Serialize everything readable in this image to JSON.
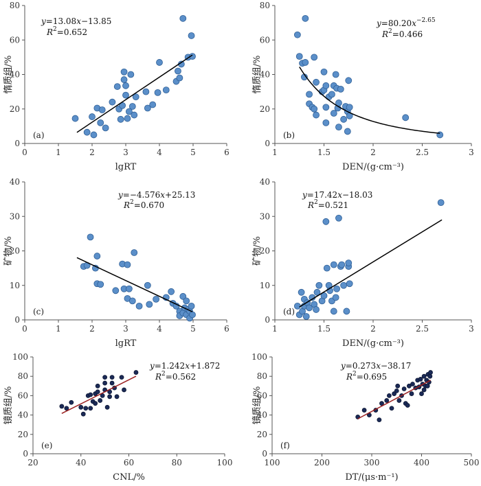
{
  "chart_data": [
    {
      "id": "a",
      "type": "scatter",
      "panel_label": "(a)",
      "xlabel": "lgRT",
      "ylabel": "惰质组/%",
      "xlim": [
        0,
        6
      ],
      "ylim": [
        0,
        80
      ],
      "xticks": [
        0,
        1,
        2,
        3,
        4,
        5,
        6
      ],
      "yticks": [
        0,
        20,
        40,
        60,
        80
      ],
      "equation": "y=13.08x−13.85",
      "r2": "R²=0.652",
      "eq_parts": {
        "y": "y",
        "rhs1": "=13.08",
        "x": "x",
        "rhs2": "−13.85",
        "r": "R",
        "sup": "2",
        "r2val": "=0.652"
      },
      "fit": {
        "kind": "linear",
        "slope": 13.08,
        "intercept": -13.85,
        "x0": 1.55,
        "x1": 4.98
      },
      "marker": {
        "fill": "#5b8fc9",
        "stroke": "#2f5f96",
        "r": 4.5
      },
      "points": [
        [
          1.5,
          14.5
        ],
        [
          1.85,
          6.5
        ],
        [
          2.0,
          15.5
        ],
        [
          2.05,
          5.0
        ],
        [
          2.15,
          20.5
        ],
        [
          2.25,
          12.0
        ],
        [
          2.3,
          19.5
        ],
        [
          2.4,
          9.0
        ],
        [
          2.6,
          24.0
        ],
        [
          2.75,
          33.0
        ],
        [
          2.8,
          20.0
        ],
        [
          2.85,
          14.0
        ],
        [
          2.9,
          22.0
        ],
        [
          2.95,
          37.0
        ],
        [
          2.95,
          41.5
        ],
        [
          3.0,
          28.0
        ],
        [
          3.0,
          33.5
        ],
        [
          3.05,
          14.5
        ],
        [
          3.1,
          18.5
        ],
        [
          3.15,
          40.0
        ],
        [
          3.2,
          21.5
        ],
        [
          3.25,
          16.5
        ],
        [
          3.3,
          27.0
        ],
        [
          3.6,
          30.0
        ],
        [
          3.65,
          20.5
        ],
        [
          3.8,
          22.5
        ],
        [
          3.95,
          29.5
        ],
        [
          4.0,
          47.0
        ],
        [
          4.2,
          31.0
        ],
        [
          4.5,
          36.0
        ],
        [
          4.55,
          42.0
        ],
        [
          4.6,
          38.0
        ],
        [
          4.65,
          46.0
        ],
        [
          4.7,
          72.5
        ],
        [
          4.85,
          50.0
        ],
        [
          4.95,
          62.5
        ],
        [
          4.98,
          50.5
        ]
      ]
    },
    {
      "id": "b",
      "type": "scatter",
      "panel_label": "(b)",
      "xlabel": "DEN/(g·cm⁻³)",
      "ylabel": "惰质组/%",
      "xlim": [
        1,
        3
      ],
      "ylim": [
        0,
        80
      ],
      "xticks": [
        1,
        1.5,
        2,
        2.5,
        3
      ],
      "yticks": [
        0,
        20,
        40,
        60,
        80
      ],
      "equation": "y=80.20x^-2.65",
      "r2": "R²=0.466",
      "eq_parts": {
        "y": "y",
        "rhs1": "=80.20",
        "x": "x",
        "sup": "−2.65",
        "r": "R",
        "sup2": "2",
        "r2val": "=0.466"
      },
      "fit": {
        "kind": "power",
        "a": 80.2,
        "b": -2.65,
        "x0": 1.25,
        "x1": 2.68
      },
      "marker": {
        "fill": "#5b8fc9",
        "stroke": "#2f5f96",
        "r": 4.5
      },
      "points": [
        [
          1.23,
          63.0
        ],
        [
          1.25,
          50.5
        ],
        [
          1.28,
          46.5
        ],
        [
          1.31,
          72.5
        ],
        [
          1.31,
          47.0
        ],
        [
          1.3,
          38.5
        ],
        [
          1.35,
          23.0
        ],
        [
          1.35,
          28.5
        ],
        [
          1.38,
          21.0
        ],
        [
          1.4,
          50.0
        ],
        [
          1.4,
          20.0
        ],
        [
          1.42,
          16.5
        ],
        [
          1.42,
          35.5
        ],
        [
          1.48,
          30.0
        ],
        [
          1.5,
          31.0
        ],
        [
          1.5,
          41.5
        ],
        [
          1.52,
          33.5
        ],
        [
          1.52,
          21.0
        ],
        [
          1.52,
          12.0
        ],
        [
          1.55,
          27.0
        ],
        [
          1.58,
          28.5
        ],
        [
          1.6,
          33.5
        ],
        [
          1.6,
          17.5
        ],
        [
          1.62,
          40.0
        ],
        [
          1.63,
          32.0
        ],
        [
          1.64,
          20.5
        ],
        [
          1.65,
          23.5
        ],
        [
          1.65,
          9.5
        ],
        [
          1.67,
          31.5
        ],
        [
          1.7,
          14.0
        ],
        [
          1.72,
          21.5
        ],
        [
          1.74,
          18.5
        ],
        [
          1.75,
          36.5
        ],
        [
          1.76,
          16.0
        ],
        [
          1.76,
          21.0
        ],
        [
          1.74,
          7.0
        ],
        [
          2.33,
          15.0
        ],
        [
          2.68,
          5.0
        ]
      ]
    },
    {
      "id": "c",
      "type": "scatter",
      "panel_label": "(c)",
      "xlabel": "lgRT",
      "ylabel": "矿物/%",
      "xlim": [
        0,
        6
      ],
      "ylim": [
        0,
        40
      ],
      "xticks": [
        0,
        1,
        2,
        3,
        4,
        5,
        6
      ],
      "yticks": [
        0,
        10,
        20,
        30,
        40
      ],
      "equation": "y=−4.576x+25.13",
      "r2": "R²=0.670",
      "eq_parts": {
        "y": "y",
        "rhs1": "=−4.576",
        "x": "x",
        "rhs2": "+25.13",
        "r": "R",
        "sup": "2",
        "r2val": "=0.670"
      },
      "fit": {
        "kind": "linear",
        "slope": -4.576,
        "intercept": 25.13,
        "x0": 1.55,
        "x1": 4.98
      },
      "marker": {
        "fill": "#5b8fc9",
        "stroke": "#2f5f96",
        "r": 4.5
      },
      "points": [
        [
          1.75,
          15.5
        ],
        [
          1.85,
          15.8
        ],
        [
          1.95,
          24.0
        ],
        [
          2.1,
          15.0
        ],
        [
          2.15,
          10.5
        ],
        [
          2.15,
          18.5
        ],
        [
          2.25,
          10.3
        ],
        [
          2.7,
          8.5
        ],
        [
          2.9,
          16.2
        ],
        [
          2.95,
          9.0
        ],
        [
          3.05,
          16.0
        ],
        [
          3.05,
          6.2
        ],
        [
          3.1,
          9.0
        ],
        [
          3.2,
          5.5
        ],
        [
          3.25,
          19.5
        ],
        [
          3.4,
          4.0
        ],
        [
          3.65,
          10.0
        ],
        [
          3.7,
          4.5
        ],
        [
          3.9,
          6.0
        ],
        [
          4.2,
          6.5
        ],
        [
          4.35,
          8.2
        ],
        [
          4.4,
          4.8
        ],
        [
          4.5,
          4.0
        ],
        [
          4.6,
          2.5
        ],
        [
          4.6,
          1.2
        ],
        [
          4.7,
          2.0
        ],
        [
          4.7,
          6.8
        ],
        [
          4.75,
          3.5
        ],
        [
          4.8,
          5.5
        ],
        [
          4.8,
          1.5
        ],
        [
          4.85,
          3.0
        ],
        [
          4.9,
          2.5
        ],
        [
          4.9,
          0.5
        ],
        [
          4.95,
          4.0
        ],
        [
          4.98,
          1.5
        ]
      ]
    },
    {
      "id": "d",
      "type": "scatter",
      "panel_label": "(d)",
      "xlabel": "DEN/(g·cm⁻³)",
      "ylabel": "矿物/%",
      "xlim": [
        1,
        3
      ],
      "ylim": [
        0,
        40
      ],
      "xticks": [
        1,
        1.5,
        2,
        2.5,
        3
      ],
      "yticks": [
        0,
        10,
        20,
        30,
        40
      ],
      "equation": "y=17.42x−18.03",
      "r2": "R²=0.521",
      "eq_parts": {
        "y": "y",
        "rhs1": "=17.42",
        "x": "x",
        "rhs2": "−18.03",
        "r": "R",
        "sup": "2",
        "r2val": "=0.521"
      },
      "fit": {
        "kind": "linear",
        "slope": 17.42,
        "intercept": -18.03,
        "x0": 1.25,
        "x1": 2.7
      },
      "marker": {
        "fill": "#5b8fc9",
        "stroke": "#2f5f96",
        "r": 4.5
      },
      "points": [
        [
          1.23,
          4.0
        ],
        [
          1.25,
          1.5
        ],
        [
          1.27,
          8.0
        ],
        [
          1.28,
          2.5
        ],
        [
          1.3,
          4.0
        ],
        [
          1.3,
          6.0
        ],
        [
          1.32,
          1.0
        ],
        [
          1.33,
          5.0
        ],
        [
          1.35,
          3.5
        ],
        [
          1.38,
          6.5
        ],
        [
          1.4,
          4.5
        ],
        [
          1.42,
          3.0
        ],
        [
          1.43,
          8.0
        ],
        [
          1.45,
          10.0
        ],
        [
          1.48,
          5.5
        ],
        [
          1.5,
          7.0
        ],
        [
          1.52,
          28.5
        ],
        [
          1.53,
          15.0
        ],
        [
          1.55,
          10.0
        ],
        [
          1.56,
          8.5
        ],
        [
          1.58,
          5.5
        ],
        [
          1.6,
          16.0
        ],
        [
          1.6,
          2.5
        ],
        [
          1.62,
          6.5
        ],
        [
          1.63,
          9.0
        ],
        [
          1.65,
          29.5
        ],
        [
          1.67,
          15.5
        ],
        [
          1.68,
          16.0
        ],
        [
          1.7,
          10.0
        ],
        [
          1.73,
          2.5
        ],
        [
          1.75,
          15.5
        ],
        [
          1.76,
          10.5
        ],
        [
          1.75,
          16.5
        ],
        [
          2.69,
          34.0
        ]
      ]
    },
    {
      "id": "e",
      "type": "scatter",
      "panel_label": "(e)",
      "xlabel": "CNL/%",
      "ylabel": "镜质组/%",
      "xlim": [
        20,
        100
      ],
      "ylim": [
        0,
        100
      ],
      "xticks": [
        20,
        40,
        60,
        80,
        100
      ],
      "yticks": [
        0,
        20,
        40,
        60,
        80,
        100
      ],
      "equation": "y=1.242x+1.872",
      "r2": "R²=0.562",
      "eq_parts": {
        "y": "y",
        "rhs1": "=1.242",
        "x": "x",
        "rhs2": "+1.872",
        "r": "R",
        "sup": "2",
        "r2val": "=0.562"
      },
      "fit": {
        "kind": "linear",
        "slope": 1.242,
        "intercept": 1.872,
        "x0": 32,
        "x1": 63
      },
      "fit_color": "#9b1f1f",
      "marker": {
        "fill": "#1b2a57",
        "stroke": "#0d1733",
        "r": 3
      },
      "points": [
        [
          32,
          49
        ],
        [
          34,
          47
        ],
        [
          36,
          53
        ],
        [
          40,
          48
        ],
        [
          41,
          41
        ],
        [
          42,
          47
        ],
        [
          43,
          60
        ],
        [
          44,
          61
        ],
        [
          44,
          47
        ],
        [
          45,
          54
        ],
        [
          46,
          62
        ],
        [
          46,
          52
        ],
        [
          47,
          64
        ],
        [
          47,
          70
        ],
        [
          48,
          55
        ],
        [
          49,
          60
        ],
        [
          50,
          66
        ],
        [
          50,
          73
        ],
        [
          50,
          79
        ],
        [
          51,
          48
        ],
        [
          52,
          59
        ],
        [
          52,
          64
        ],
        [
          53,
          73
        ],
        [
          53,
          79
        ],
        [
          54,
          68
        ],
        [
          55,
          59
        ],
        [
          57,
          79
        ],
        [
          58,
          66
        ],
        [
          63,
          84
        ]
      ]
    },
    {
      "id": "f",
      "type": "scatter",
      "panel_label": "(f)",
      "xlabel": "DT/(μs·m⁻¹)",
      "ylabel": "镜质组/%",
      "xlim": [
        100,
        500
      ],
      "ylim": [
        0,
        100
      ],
      "xticks": [
        100,
        200,
        300,
        400,
        500
      ],
      "yticks": [
        0,
        20,
        40,
        60,
        80,
        100
      ],
      "equation": "y=0.273x−38.17",
      "r2": "R²=0.695",
      "eq_parts": {
        "y": "y",
        "rhs1": "=0.273",
        "x": "x",
        "rhs2": "−38.17",
        "r": "R",
        "sup": "2",
        "r2val": "=0.695"
      },
      "fit": {
        "kind": "linear",
        "slope": 0.273,
        "intercept": -38.17,
        "x0": 272,
        "x1": 418
      },
      "fit_color": "#9b1f1f",
      "marker": {
        "fill": "#1b2a57",
        "stroke": "#0d1733",
        "r": 3
      },
      "points": [
        [
          272,
          38
        ],
        [
          285,
          45
        ],
        [
          295,
          40
        ],
        [
          308,
          45
        ],
        [
          315,
          35
        ],
        [
          320,
          52
        ],
        [
          330,
          55
        ],
        [
          335,
          60
        ],
        [
          340,
          47
        ],
        [
          345,
          62
        ],
        [
          350,
          65
        ],
        [
          352,
          70
        ],
        [
          355,
          55
        ],
        [
          360,
          60
        ],
        [
          365,
          67
        ],
        [
          368,
          52
        ],
        [
          372,
          50
        ],
        [
          375,
          70
        ],
        [
          380,
          62
        ],
        [
          382,
          72
        ],
        [
          388,
          68
        ],
        [
          392,
          76
        ],
        [
          395,
          69
        ],
        [
          398,
          77
        ],
        [
          400,
          62
        ],
        [
          402,
          72
        ],
        [
          405,
          80
        ],
        [
          408,
          70
        ],
        [
          410,
          76
        ],
        [
          413,
          82
        ],
        [
          415,
          74
        ],
        [
          417,
          80
        ],
        [
          418,
          84
        ],
        [
          412,
          70
        ],
        [
          405,
          66
        ]
      ]
    }
  ]
}
